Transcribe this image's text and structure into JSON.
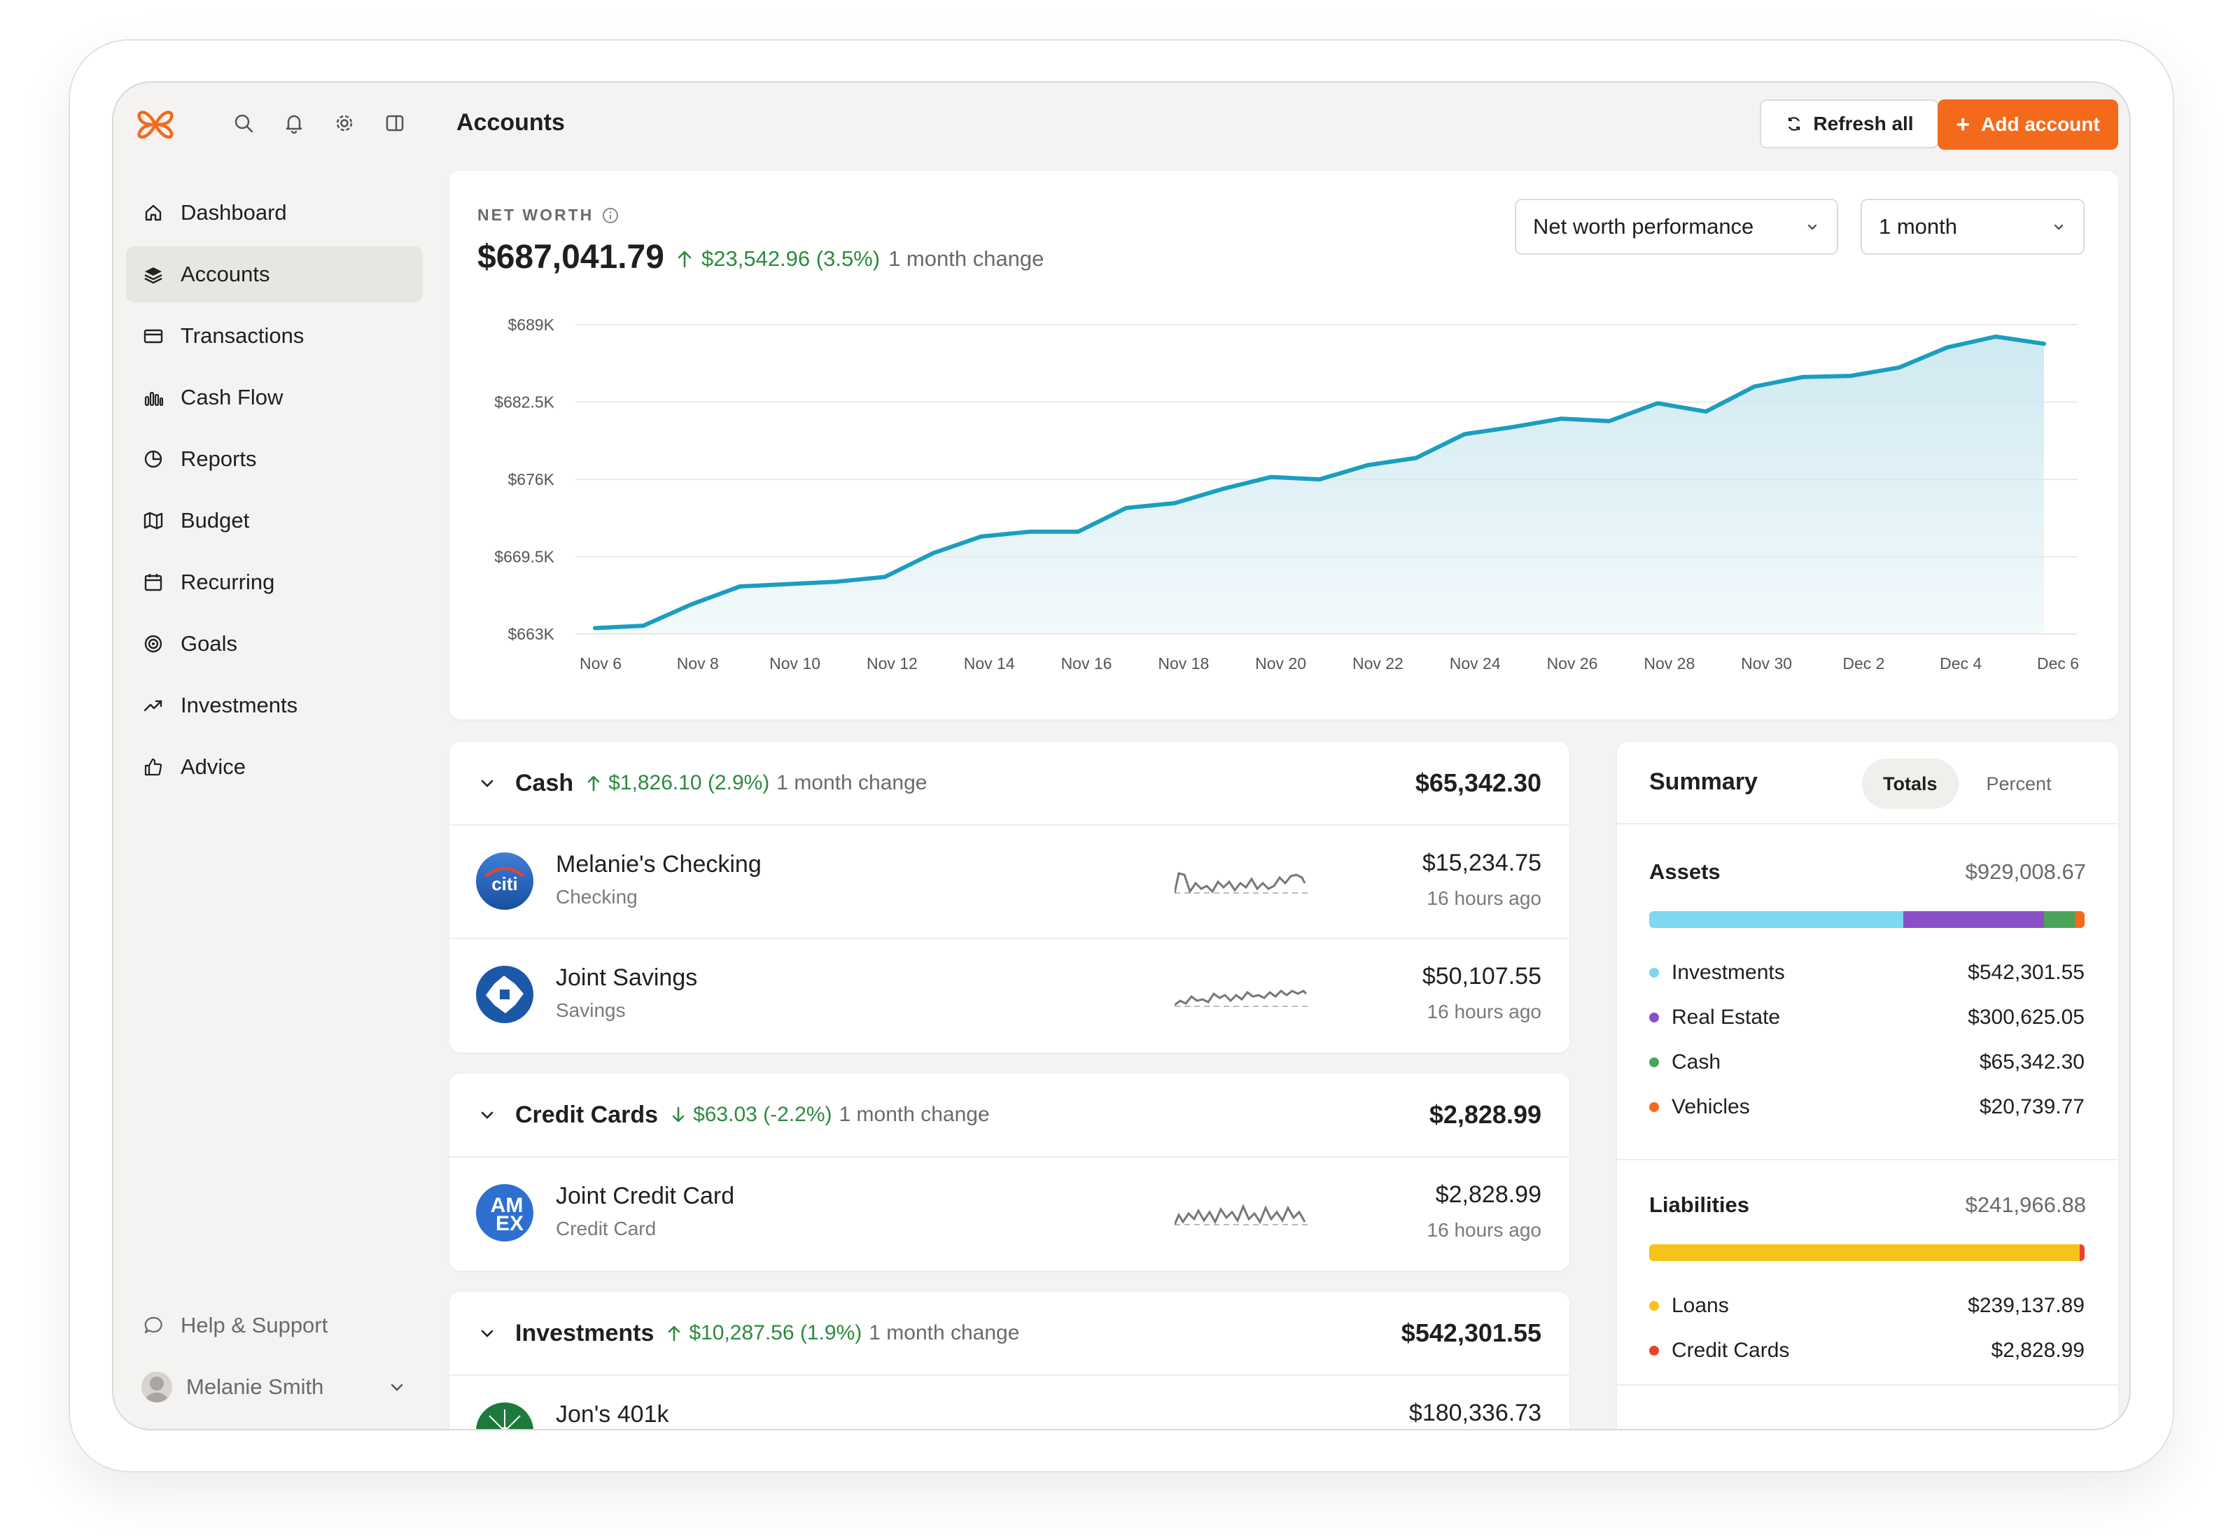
{
  "app": {
    "page_title": "Accounts",
    "refresh_label": "Refresh all",
    "add_label": "Add account"
  },
  "sidebar": {
    "items": [
      {
        "label": "Dashboard",
        "icon": "home-icon"
      },
      {
        "label": "Accounts",
        "icon": "layers-icon",
        "active": true
      },
      {
        "label": "Transactions",
        "icon": "card-icon"
      },
      {
        "label": "Cash Flow",
        "icon": "bar-chart-icon"
      },
      {
        "label": "Reports",
        "icon": "pie-icon"
      },
      {
        "label": "Budget",
        "icon": "map-icon"
      },
      {
        "label": "Recurring",
        "icon": "calendar-icon"
      },
      {
        "label": "Goals",
        "icon": "target-icon"
      },
      {
        "label": "Investments",
        "icon": "trend-icon"
      },
      {
        "label": "Advice",
        "icon": "thumbs-up-icon"
      }
    ],
    "help_label": "Help & Support",
    "user_name": "Melanie Smith"
  },
  "net_worth": {
    "label": "NET WORTH",
    "value": "$687,041.79",
    "change": "$23,542.96 (3.5%)",
    "change_suffix": "1 month change",
    "performance_select": "Net worth performance",
    "period_select": "1 month"
  },
  "chart_data": {
    "type": "area",
    "title": "",
    "xlabel": "",
    "ylabel": "",
    "ylim": [
      663000,
      689000
    ],
    "yticks": [
      "$689K",
      "$682.5K",
      "$676K",
      "$669.5K",
      "$663K"
    ],
    "xticks": [
      "Nov 6",
      "Nov 8",
      "Nov 10",
      "Nov 12",
      "Nov 14",
      "Nov 16",
      "Nov 18",
      "Nov 20",
      "Nov 22",
      "Nov 24",
      "Nov 26",
      "Nov 28",
      "Nov 30",
      "Dec 2",
      "Dec 4",
      "Dec 6"
    ],
    "color": "#1a9ec0",
    "fill": "#cfe9f1",
    "grid": true,
    "series": [
      {
        "values": [
          663500,
          663700,
          665500,
          667000,
          667200,
          667400,
          667800,
          669800,
          671200,
          671600,
          671600,
          673600,
          674000,
          675200,
          676200,
          676000,
          677200,
          677800,
          679800,
          680400,
          681100,
          680900,
          682400,
          681700,
          683800,
          684600,
          684700,
          685400,
          687100,
          688000,
          687400
        ]
      }
    ]
  },
  "groups": [
    {
      "name": "Cash",
      "change": "$1,826.10 (2.9%)",
      "direction": "up",
      "change_suffix": "1 month change",
      "total": "$65,342.30",
      "accounts": [
        {
          "name": "Melanie's Checking",
          "type": "Checking",
          "balance": "$15,234.75",
          "updated": "16 hours ago",
          "logo": "citi-logo"
        },
        {
          "name": "Joint Savings",
          "type": "Savings",
          "balance": "$50,107.55",
          "updated": "16 hours ago",
          "logo": "chase-logo"
        }
      ]
    },
    {
      "name": "Credit Cards",
      "change": "$63.03 (-2.2%)",
      "direction": "down",
      "change_suffix": "1 month change",
      "total": "$2,828.99",
      "accounts": [
        {
          "name": "Joint Credit Card",
          "type": "Credit Card",
          "balance": "$2,828.99",
          "updated": "16 hours ago",
          "logo": "amex-logo"
        }
      ]
    },
    {
      "name": "Investments",
      "change": "$10,287.56 (1.9%)",
      "direction": "up",
      "change_suffix": "1 month change",
      "total": "$542,301.55",
      "accounts": [
        {
          "name": "Jon's 401k",
          "type": "",
          "balance": "$180,336.73",
          "updated": "",
          "logo": "vanguard-logo"
        }
      ]
    }
  ],
  "summary": {
    "title": "Summary",
    "tab_totals": "Totals",
    "tab_percent": "Percent",
    "assets": {
      "label": "Assets",
      "total": "$929,008.67",
      "items": [
        {
          "label": "Investments",
          "value": "$542,301.55",
          "color": "#7dd8f0",
          "share": 0.5838
        },
        {
          "label": "Real Estate",
          "value": "$300,625.05",
          "color": "#8a4fc7",
          "share": 0.3236
        },
        {
          "label": "Cash",
          "value": "$65,342.30",
          "color": "#4aa55a",
          "share": 0.0703
        },
        {
          "label": "Vehicles",
          "value": "$20,739.77",
          "color": "#f46a1c",
          "share": 0.0223
        }
      ]
    },
    "liabilities": {
      "label": "Liabilities",
      "total": "$241,966.88",
      "items": [
        {
          "label": "Loans",
          "value": "$239,137.89",
          "color": "#f7c21a",
          "share": 0.9883
        },
        {
          "label": "Credit Cards",
          "value": "$2,828.99",
          "color": "#e8442c",
          "share": 0.0117
        }
      ]
    }
  }
}
